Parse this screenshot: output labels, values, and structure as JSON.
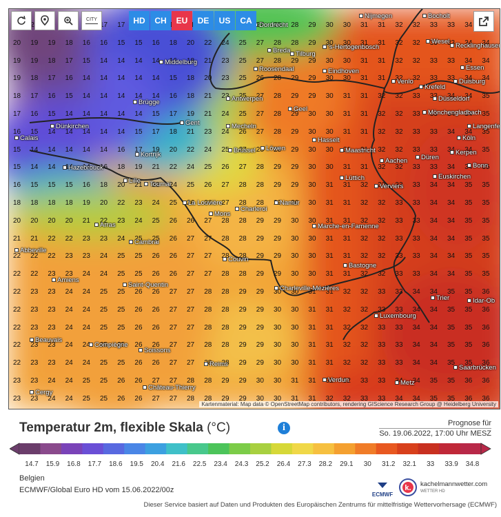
{
  "toolbar": {
    "refresh_icon": "refresh-icon",
    "location_icon": "map-pin-icon",
    "zoom_icon": "zoom-icon",
    "city_toggle_label": "CITY",
    "regions": [
      {
        "label": "HD",
        "color": "#2d8ce6"
      },
      {
        "label": "CH",
        "color": "#2d8ce6"
      },
      {
        "label": "EU",
        "color": "#e8364a"
      },
      {
        "label": "DE",
        "color": "#2d8ce6"
      },
      {
        "label": "US",
        "color": "#2d8ce6"
      },
      {
        "label": "CA",
        "color": "#2d8ce6"
      }
    ],
    "share_icon": "share-icon"
  },
  "map": {
    "attribution": "Kartenmaterial: Map data © OpenStreetMap contributors, rendering GIScience Research Group @ Heidelberg University",
    "cities": [
      "Nijmegen",
      "Bocholt",
      "Dordrecht",
      "Wesel",
      "Recklinghausen",
      "Breda",
      "Tilburg",
      "'s-Hertogenbosch",
      "Middelburg",
      "Roosendaal",
      "Eindhoven",
      "Essen",
      "Venlo",
      "Krefeld",
      "Duisburg",
      "Brügge",
      "Antwerpen",
      "Düsseldorf",
      "Mönchengladbach",
      "Geel",
      "Gent",
      "Dünkirchen",
      "Mecheln",
      "Langenfeld",
      "Calais",
      "Hasselt",
      "Maastricht",
      "Köln",
      "Brüssel",
      "Löwen",
      "Kerpen",
      "Hazebrouck",
      "Kortrijk",
      "Aachen",
      "Düren",
      "Bonn",
      "Lüttich",
      "Euskirchen",
      "Lille",
      "Tournai",
      "Verviers",
      "La Louvière",
      "Namur",
      "Charleroi",
      "Mons",
      "Arras",
      "Marche-en-Famenne",
      "Abbeville",
      "Cambrai",
      "Couvin",
      "Bastogne",
      "Amiens",
      "Saint-Quentin",
      "Charleville-Mézières",
      "Trier",
      "Idar-Ob",
      "Luxembourg",
      "Beauvais",
      "Compiègne",
      "Soissons",
      "Reims",
      "Saarbrücken",
      "Verdun",
      "Metz",
      "Château-Thierry",
      "Cergy"
    ]
  },
  "legend": {
    "title": "Temperatur 2m, flexible Skala",
    "unit": "(°C)",
    "info_icon": "info-icon",
    "forecast_label": "Prognose für",
    "forecast_time": "So. 19.06.2022, 17:00 Uhr MESZ",
    "scale_values": [
      "14.7",
      "15.9",
      "16.8",
      "17.7",
      "18.6",
      "19.5",
      "20.4",
      "21.6",
      "22.5",
      "23.4",
      "24.3",
      "25.2",
      "26.4",
      "27.3",
      "28.2",
      "29.1",
      "30",
      "31.2",
      "32.1",
      "33",
      "33.9",
      "34.8"
    ],
    "scale_colors": [
      "#6b3d6b",
      "#8a4a8c",
      "#7a43b8",
      "#6a4fd6",
      "#5869e0",
      "#4a86e6",
      "#3ca0e0",
      "#3fc0c8",
      "#48c88c",
      "#4cc45a",
      "#7ccc48",
      "#a8d040",
      "#d6d838",
      "#f0d848",
      "#f6c040",
      "#f4a030",
      "#f07c28",
      "#e85820",
      "#d8401c",
      "#c83020",
      "#c02838",
      "#b82848"
    ],
    "region": "Belgien",
    "model": "ECMWF/Global Euro HD vom 15.06.2022/00z",
    "ecmwf_label": "ECMWF",
    "brand_name": "kachelmannwetter.com",
    "brand_sub": "WETTER HD",
    "disclaimer": "Dieser Service basiert auf Daten und Produkten des Europäischen Zentrums für mittelfristige Wettervorhersage (ECMWF)"
  }
}
